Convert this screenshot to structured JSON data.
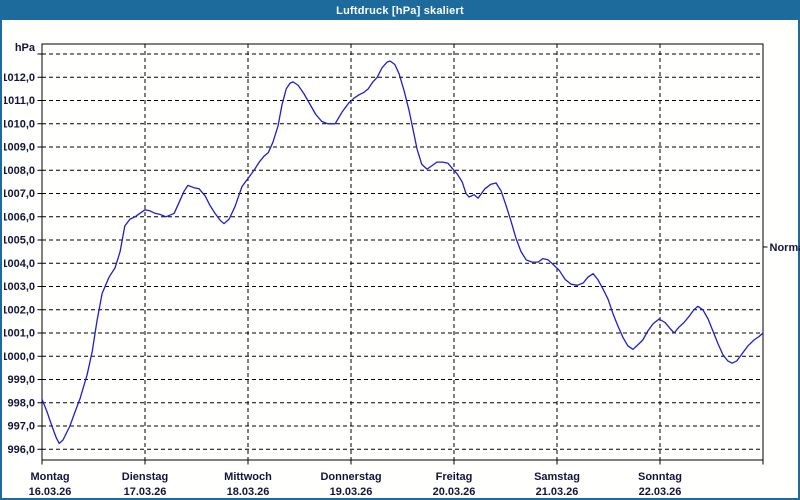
{
  "window": {
    "title": "Luftdruck [hPa] skaliert"
  },
  "colors": {
    "titlebar_bg": "#1d6b9c",
    "window_border": "#1d6b9c",
    "background": "#fffffe",
    "grid": "#000000",
    "axis_border": "#000000",
    "curve": "#1f1fc8",
    "label_text": "#14143a",
    "title_text": "#ffffff"
  },
  "chart_data": {
    "type": "line",
    "title": "Luftdruck [hPa] skaliert",
    "ylabel": "hPa",
    "xlabel": "",
    "grid": "dashed, 1 hPa horizontal steps, vertical line per day",
    "legend_position": "none",
    "y_axis": {
      "unit_label": "hPa",
      "view_min": 995.5,
      "view_max": 1013.4,
      "tick_step": 1,
      "ticks": [
        {
          "v": 996,
          "label": "996,0"
        },
        {
          "v": 997,
          "label": "997,0"
        },
        {
          "v": 998,
          "label": "998,0"
        },
        {
          "v": 999,
          "label": "999,0"
        },
        {
          "v": 1000,
          "label": "1000,0"
        },
        {
          "v": 1001,
          "label": "1001,0"
        },
        {
          "v": 1002,
          "label": "1002,0"
        },
        {
          "v": 1003,
          "label": "1003,0"
        },
        {
          "v": 1004,
          "label": "1004,0"
        },
        {
          "v": 1005,
          "label": "1005,0"
        },
        {
          "v": 1006,
          "label": "1006,0"
        },
        {
          "v": 1007,
          "label": "1007,0"
        },
        {
          "v": 1008,
          "label": "1008,0"
        },
        {
          "v": 1009,
          "label": "1009,0"
        },
        {
          "v": 1010,
          "label": "1010,0"
        },
        {
          "v": 1011,
          "label": "1011,0"
        },
        {
          "v": 1012,
          "label": "1012,0"
        }
      ],
      "unlabeled_gridlines": [
        1013
      ]
    },
    "x_axis": {
      "total_hours": 168,
      "days": [
        {
          "name": "Montag",
          "date": "16.03.26"
        },
        {
          "name": "Dienstag",
          "date": "17.03.26"
        },
        {
          "name": "Mittwoch",
          "date": "18.03.26"
        },
        {
          "name": "Donnerstag",
          "date": "19.03.26"
        },
        {
          "name": "Freitag",
          "date": "20.03.26"
        },
        {
          "name": "Samstag",
          "date": "21.03.26"
        },
        {
          "name": "Sonntag",
          "date": "22.03.26"
        }
      ]
    },
    "right_marker": {
      "label": "Normal",
      "value": 1004.7
    },
    "series": [
      {
        "name": "Luftdruck",
        "points": [
          [
            0,
            998.15
          ],
          [
            1.2,
            997.6
          ],
          [
            2.3,
            997.0
          ],
          [
            3.3,
            996.5
          ],
          [
            4.0,
            996.25
          ],
          [
            4.9,
            996.4
          ],
          [
            6.5,
            997.0
          ],
          [
            7.7,
            997.6
          ],
          [
            8.9,
            998.2
          ],
          [
            10.5,
            999.2
          ],
          [
            11.7,
            1000.2
          ],
          [
            12.8,
            1001.5
          ],
          [
            14.0,
            1002.7
          ],
          [
            15.6,
            1003.4
          ],
          [
            17.0,
            1003.8
          ],
          [
            18.2,
            1004.5
          ],
          [
            19.3,
            1005.6
          ],
          [
            20.5,
            1005.9
          ],
          [
            21.7,
            1006.0
          ],
          [
            22.8,
            1006.15
          ],
          [
            24.0,
            1006.3
          ],
          [
            25.2,
            1006.25
          ],
          [
            26.3,
            1006.15
          ],
          [
            27.5,
            1006.1
          ],
          [
            28.9,
            1006.0
          ],
          [
            30.8,
            1006.15
          ],
          [
            31.9,
            1006.6
          ],
          [
            33.1,
            1007.1
          ],
          [
            34.0,
            1007.35
          ],
          [
            35.4,
            1007.25
          ],
          [
            36.6,
            1007.2
          ],
          [
            38.0,
            1006.9
          ],
          [
            39.1,
            1006.5
          ],
          [
            40.3,
            1006.15
          ],
          [
            41.5,
            1005.85
          ],
          [
            42.4,
            1005.7
          ],
          [
            43.6,
            1005.9
          ],
          [
            45.0,
            1006.45
          ],
          [
            46.6,
            1007.3
          ],
          [
            48.2,
            1007.7
          ],
          [
            49.4,
            1008.0
          ],
          [
            50.6,
            1008.35
          ],
          [
            51.7,
            1008.6
          ],
          [
            52.7,
            1008.75
          ],
          [
            53.8,
            1009.2
          ],
          [
            55.0,
            1009.9
          ],
          [
            55.9,
            1010.8
          ],
          [
            56.9,
            1011.5
          ],
          [
            57.8,
            1011.75
          ],
          [
            58.5,
            1011.8
          ],
          [
            59.7,
            1011.65
          ],
          [
            61.0,
            1011.3
          ],
          [
            62.4,
            1010.85
          ],
          [
            63.8,
            1010.4
          ],
          [
            65.2,
            1010.1
          ],
          [
            66.6,
            1010.0
          ],
          [
            68.3,
            1010.0
          ],
          [
            69.9,
            1010.5
          ],
          [
            71.5,
            1010.9
          ],
          [
            72.7,
            1011.1
          ],
          [
            73.9,
            1011.25
          ],
          [
            75.0,
            1011.35
          ],
          [
            76.0,
            1011.5
          ],
          [
            77.1,
            1011.8
          ],
          [
            78.1,
            1012.0
          ],
          [
            79.2,
            1012.4
          ],
          [
            80.4,
            1012.65
          ],
          [
            81.1,
            1012.7
          ],
          [
            82.2,
            1012.55
          ],
          [
            83.2,
            1012.15
          ],
          [
            84.4,
            1011.4
          ],
          [
            85.5,
            1010.6
          ],
          [
            86.4,
            1009.8
          ],
          [
            87.4,
            1008.9
          ],
          [
            88.5,
            1008.25
          ],
          [
            89.7,
            1008.05
          ],
          [
            90.9,
            1008.2
          ],
          [
            92.0,
            1008.35
          ],
          [
            93.4,
            1008.35
          ],
          [
            94.6,
            1008.3
          ],
          [
            95.5,
            1008.1
          ],
          [
            96.7,
            1007.85
          ],
          [
            97.9,
            1007.5
          ],
          [
            98.8,
            1007.0
          ],
          [
            99.5,
            1006.85
          ],
          [
            100.7,
            1006.95
          ],
          [
            101.6,
            1006.8
          ],
          [
            103.2,
            1007.2
          ],
          [
            104.6,
            1007.4
          ],
          [
            105.8,
            1007.45
          ],
          [
            107.0,
            1007.1
          ],
          [
            108.1,
            1006.5
          ],
          [
            109.3,
            1005.8
          ],
          [
            110.4,
            1005.1
          ],
          [
            111.6,
            1004.5
          ],
          [
            112.8,
            1004.15
          ],
          [
            114.2,
            1004.05
          ],
          [
            115.6,
            1004.05
          ],
          [
            116.7,
            1004.2
          ],
          [
            117.9,
            1004.15
          ],
          [
            119.1,
            1003.95
          ],
          [
            120.5,
            1003.7
          ],
          [
            121.9,
            1003.3
          ],
          [
            123.3,
            1003.1
          ],
          [
            124.7,
            1003.05
          ],
          [
            126.1,
            1003.15
          ],
          [
            127.2,
            1003.4
          ],
          [
            128.4,
            1003.55
          ],
          [
            129.5,
            1003.3
          ],
          [
            130.7,
            1002.9
          ],
          [
            131.9,
            1002.45
          ],
          [
            133.0,
            1001.85
          ],
          [
            134.2,
            1001.3
          ],
          [
            135.4,
            1000.8
          ],
          [
            136.5,
            1000.45
          ],
          [
            137.7,
            1000.3
          ],
          [
            138.9,
            1000.5
          ],
          [
            140.0,
            1000.7
          ],
          [
            141.2,
            1001.1
          ],
          [
            142.4,
            1001.4
          ],
          [
            143.8,
            1001.6
          ],
          [
            145.2,
            1001.45
          ],
          [
            146.3,
            1001.2
          ],
          [
            147.3,
            1001.0
          ],
          [
            148.4,
            1001.25
          ],
          [
            149.6,
            1001.45
          ],
          [
            150.7,
            1001.7
          ],
          [
            151.9,
            1002.0
          ],
          [
            152.8,
            1002.15
          ],
          [
            154.0,
            1002.0
          ],
          [
            155.2,
            1001.6
          ],
          [
            156.3,
            1001.1
          ],
          [
            157.5,
            1000.55
          ],
          [
            158.7,
            1000.05
          ],
          [
            159.8,
            999.8
          ],
          [
            160.8,
            999.7
          ],
          [
            161.9,
            999.8
          ],
          [
            163.1,
            1000.1
          ],
          [
            164.5,
            1000.45
          ],
          [
            165.9,
            1000.7
          ],
          [
            167.1,
            1000.85
          ],
          [
            168,
            1001.0
          ]
        ]
      }
    ]
  }
}
